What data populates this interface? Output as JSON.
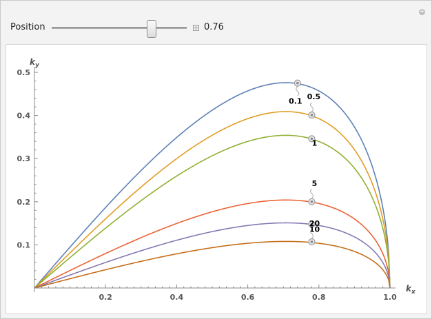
{
  "control": {
    "label": "Position",
    "value_text": "0.76",
    "position": 0.76,
    "min": 0,
    "max": 1
  },
  "icons": {
    "increment": "plus-icon",
    "panel_options": "add-circle-icon"
  },
  "chart_data": {
    "type": "line",
    "xlabel": "k_x",
    "ylabel": "k_y",
    "xlim": [
      0,
      1
    ],
    "ylim": [
      0,
      0.5
    ],
    "xticks": [
      0.2,
      0.4,
      0.6,
      0.8,
      1.0
    ],
    "xtick_labels": [
      "0.2",
      "0.4",
      "0.6",
      "0.8",
      "1.0"
    ],
    "yticks": [
      0.1,
      0.2,
      0.3,
      0.4,
      0.5
    ],
    "ytick_labels": [
      "0.1",
      "0.2",
      "0.3",
      "0.4",
      "0.5"
    ],
    "grid": false,
    "series": [
      {
        "name": "0.1",
        "peak": 0.476,
        "color": "#5e81b5",
        "marker": {
          "x": 0.74,
          "y": 0.475
        }
      },
      {
        "name": "0.5",
        "peak": 0.409,
        "color": "#e19c24",
        "marker": {
          "x": 0.78,
          "y": 0.401
        }
      },
      {
        "name": "1",
        "peak": 0.354,
        "color": "#8fb032",
        "marker": {
          "x": 0.78,
          "y": 0.346
        }
      },
      {
        "name": "5",
        "peak": 0.204,
        "color": "#eb6235",
        "marker": {
          "x": 0.78,
          "y": 0.2
        }
      },
      {
        "name": "10",
        "peak": 0.151,
        "color": "#8778b3",
        "marker": {
          "x": 0.78,
          "y": 0.148
        }
      },
      {
        "name": "20",
        "peak": 0.108,
        "color": "#c56e1a",
        "marker": {
          "x": 0.78,
          "y": 0.107
        }
      }
    ]
  }
}
